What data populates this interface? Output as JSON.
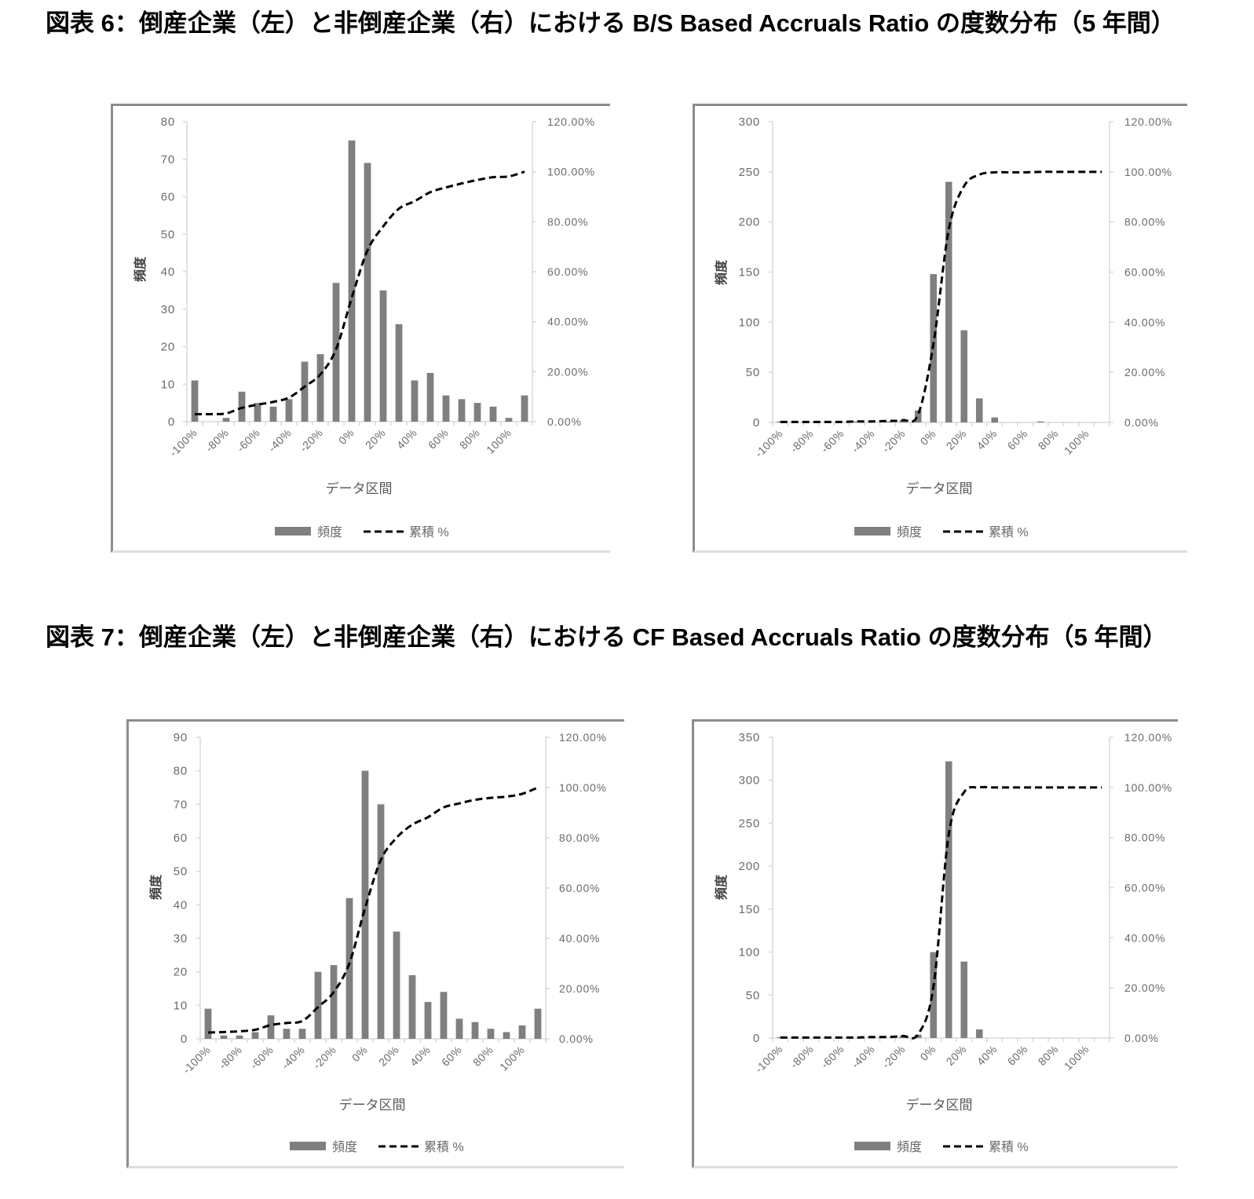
{
  "figures": [
    {
      "title": "図表 6：倒産企業（左）と非倒産企業（右）における B/S Based Accruals Ratio の度数分布（5 年間）"
    },
    {
      "title": "図表 7：倒産企業（左）と非倒産企業（右）における CF Based Accruals Ratio の度数分布（5 年間）"
    }
  ],
  "colors": {
    "bar": "#7f7f7f",
    "line": "#000000",
    "axis": "#d9d9d9",
    "tick_text": "#6a6a6a"
  },
  "chart_data": [
    {
      "type": "bar",
      "figure": "図表 6",
      "subject": "倒産企業",
      "position": "left",
      "title": "",
      "categories": [
        "-100%",
        "-90%",
        "-80%",
        "-70%",
        "-60%",
        "-50%",
        "-40%",
        "-30%",
        "-20%",
        "-10%",
        "0%",
        "10%",
        "20%",
        "30%",
        "40%",
        "50%",
        "60%",
        "70%",
        "80%",
        "90%",
        "100%",
        ""
      ],
      "x_tick_labels": [
        "-100%",
        "-80%",
        "-60%",
        "-40%",
        "-20%",
        "0%",
        "20%",
        "40%",
        "60%",
        "80%",
        "100%"
      ],
      "x_tick_step": 2,
      "xlabel": "データ区間",
      "ylabel": "頻度",
      "ylim": [
        0,
        80
      ],
      "yticks": [
        0,
        10,
        20,
        30,
        40,
        50,
        60,
        70,
        80
      ],
      "y2lim": [
        0,
        120
      ],
      "y2ticks": [
        0,
        20,
        40,
        60,
        80,
        100,
        120
      ],
      "y2tick_labels": [
        "0.00%",
        "20.00%",
        "40.00%",
        "60.00%",
        "80.00%",
        "100.00%",
        "120.00%"
      ],
      "series": [
        {
          "name": "頻度",
          "type": "bar",
          "axis": "left",
          "color": "#7f7f7f",
          "values": [
            11,
            0,
            1,
            8,
            5,
            4,
            6,
            16,
            18,
            37,
            75,
            69,
            35,
            26,
            11,
            13,
            7,
            6,
            5,
            4,
            1,
            7
          ]
        },
        {
          "name": "累積 %",
          "type": "line",
          "axis": "right",
          "style": "dashed",
          "color": "#000000",
          "values": [
            3.0,
            3.0,
            3.3,
            5.5,
            6.8,
            7.9,
            9.6,
            14.0,
            18.9,
            29.0,
            49.6,
            68.5,
            78.1,
            85.2,
            88.2,
            91.8,
            93.7,
            95.3,
            96.7,
            97.8,
            98.1,
            100.0
          ]
        }
      ],
      "legend": {
        "position": "bottom"
      },
      "grid": false
    },
    {
      "type": "bar",
      "figure": "図表 6",
      "subject": "非倒産企業",
      "position": "right",
      "title": "",
      "categories": [
        "-100%",
        "-90%",
        "-80%",
        "-70%",
        "-60%",
        "-50%",
        "-40%",
        "-30%",
        "-20%",
        "-10%",
        "0%",
        "10%",
        "20%",
        "30%",
        "40%",
        "50%",
        "60%",
        "70%",
        "80%",
        "90%",
        "100%",
        ""
      ],
      "x_tick_labels": [
        "-100%",
        "-80%",
        "-60%",
        "-40%",
        "-20%",
        "0%",
        "20%",
        "40%",
        "60%",
        "80%",
        "100%"
      ],
      "x_tick_step": 2,
      "xlabel": "データ区間",
      "ylabel": "頻度",
      "ylim": [
        0,
        300
      ],
      "yticks": [
        0,
        50,
        100,
        150,
        200,
        250,
        300
      ],
      "y2lim": [
        0,
        120
      ],
      "y2ticks": [
        0,
        20,
        40,
        60,
        80,
        100,
        120
      ],
      "y2tick_labels": [
        "0.00%",
        "20.00%",
        "40.00%",
        "60.00%",
        "80.00%",
        "100.00%",
        "120.00%"
      ],
      "series": [
        {
          "name": "頻度",
          "type": "bar",
          "axis": "left",
          "color": "#7f7f7f",
          "values": [
            1,
            0,
            0,
            0,
            0,
            1,
            0,
            1,
            2,
            12,
            148,
            240,
            92,
            24,
            5,
            0,
            0,
            1,
            0,
            0,
            0,
            0
          ]
        },
        {
          "name": "累積 %",
          "type": "line",
          "axis": "right",
          "style": "dashed",
          "color": "#000000",
          "values": [
            0.2,
            0.2,
            0.2,
            0.2,
            0.2,
            0.4,
            0.4,
            0.6,
            0.9,
            3.2,
            31.3,
            76.9,
            94.3,
            98.9,
            99.8,
            99.8,
            99.8,
            100.0,
            100.0,
            100.0,
            100.0,
            100.0
          ]
        }
      ],
      "legend": {
        "position": "bottom"
      },
      "grid": false
    },
    {
      "type": "bar",
      "figure": "図表 7",
      "subject": "倒産企業",
      "position": "left",
      "title": "",
      "categories": [
        "-100%",
        "-90%",
        "-80%",
        "-70%",
        "-60%",
        "-50%",
        "-40%",
        "-30%",
        "-20%",
        "-10%",
        "0%",
        "10%",
        "20%",
        "30%",
        "40%",
        "50%",
        "60%",
        "70%",
        "80%",
        "90%",
        "100%",
        ""
      ],
      "x_tick_labels": [
        "-100%",
        "-80%",
        "-60%",
        "-40%",
        "-20%",
        "0%",
        "20%",
        "40%",
        "60%",
        "80%",
        "100%"
      ],
      "x_tick_step": 2,
      "xlabel": "データ区間",
      "ylabel": "頻度",
      "ylim": [
        0,
        90
      ],
      "yticks": [
        0,
        10,
        20,
        30,
        40,
        50,
        60,
        70,
        80,
        90
      ],
      "y2lim": [
        0,
        120
      ],
      "y2ticks": [
        0,
        20,
        40,
        60,
        80,
        100,
        120
      ],
      "y2tick_labels": [
        "0.00%",
        "20.00%",
        "40.00%",
        "60.00%",
        "80.00%",
        "100.00%",
        "120.00%"
      ],
      "series": [
        {
          "name": "頻度",
          "type": "bar",
          "axis": "left",
          "color": "#7f7f7f",
          "values": [
            9,
            1,
            1,
            2,
            7,
            3,
            3,
            20,
            22,
            42,
            80,
            70,
            32,
            19,
            11,
            14,
            6,
            5,
            3,
            2,
            4,
            9
          ]
        },
        {
          "name": "累積 %",
          "type": "line",
          "axis": "right",
          "style": "dashed",
          "color": "#000000",
          "values": [
            2.5,
            2.7,
            3.0,
            3.6,
            5.5,
            6.3,
            7.1,
            12.6,
            18.6,
            30.1,
            52.1,
            71.2,
            80.0,
            85.2,
            88.2,
            92.1,
            93.7,
            95.1,
            95.9,
            96.4,
            97.5,
            100.0
          ]
        }
      ],
      "legend": {
        "position": "bottom"
      },
      "grid": false
    },
    {
      "type": "bar",
      "figure": "図表 7",
      "subject": "非倒産企業",
      "position": "right",
      "title": "",
      "categories": [
        "-100%",
        "-90%",
        "-80%",
        "-70%",
        "-60%",
        "-50%",
        "-40%",
        "-30%",
        "-20%",
        "-10%",
        "0%",
        "10%",
        "20%",
        "30%",
        "40%",
        "50%",
        "60%",
        "70%",
        "80%",
        "90%",
        "100%",
        ""
      ],
      "x_tick_labels": [
        "-100%",
        "-80%",
        "-60%",
        "-40%",
        "-20%",
        "0%",
        "20%",
        "40%",
        "60%",
        "80%",
        "100%"
      ],
      "x_tick_step": 2,
      "xlabel": "データ区間",
      "ylabel": "頻度",
      "ylim": [
        0,
        350
      ],
      "yticks": [
        0,
        50,
        100,
        150,
        200,
        250,
        300,
        350
      ],
      "y2lim": [
        0,
        120
      ],
      "y2ticks": [
        0,
        20,
        40,
        60,
        80,
        100,
        120
      ],
      "y2tick_labels": [
        "0.00%",
        "20.00%",
        "40.00%",
        "60.00%",
        "80.00%",
        "100.00%",
        "120.00%"
      ],
      "series": [
        {
          "name": "頻度",
          "type": "bar",
          "axis": "left",
          "color": "#7f7f7f",
          "values": [
            1,
            0,
            0,
            0,
            0,
            0,
            1,
            0,
            2,
            4,
            100,
            322,
            89,
            10,
            0,
            0,
            0,
            0,
            0,
            0,
            0,
            0
          ]
        },
        {
          "name": "累積 %",
          "type": "line",
          "axis": "right",
          "style": "dashed",
          "color": "#000000",
          "values": [
            0.2,
            0.2,
            0.2,
            0.2,
            0.2,
            0.2,
            0.4,
            0.4,
            0.8,
            1.5,
            20.4,
            81.3,
            98.1,
            100.0,
            100.0,
            100.0,
            100.0,
            100.0,
            100.0,
            100.0,
            100.0,
            100.0
          ]
        }
      ],
      "legend": {
        "position": "bottom"
      },
      "grid": false
    }
  ]
}
